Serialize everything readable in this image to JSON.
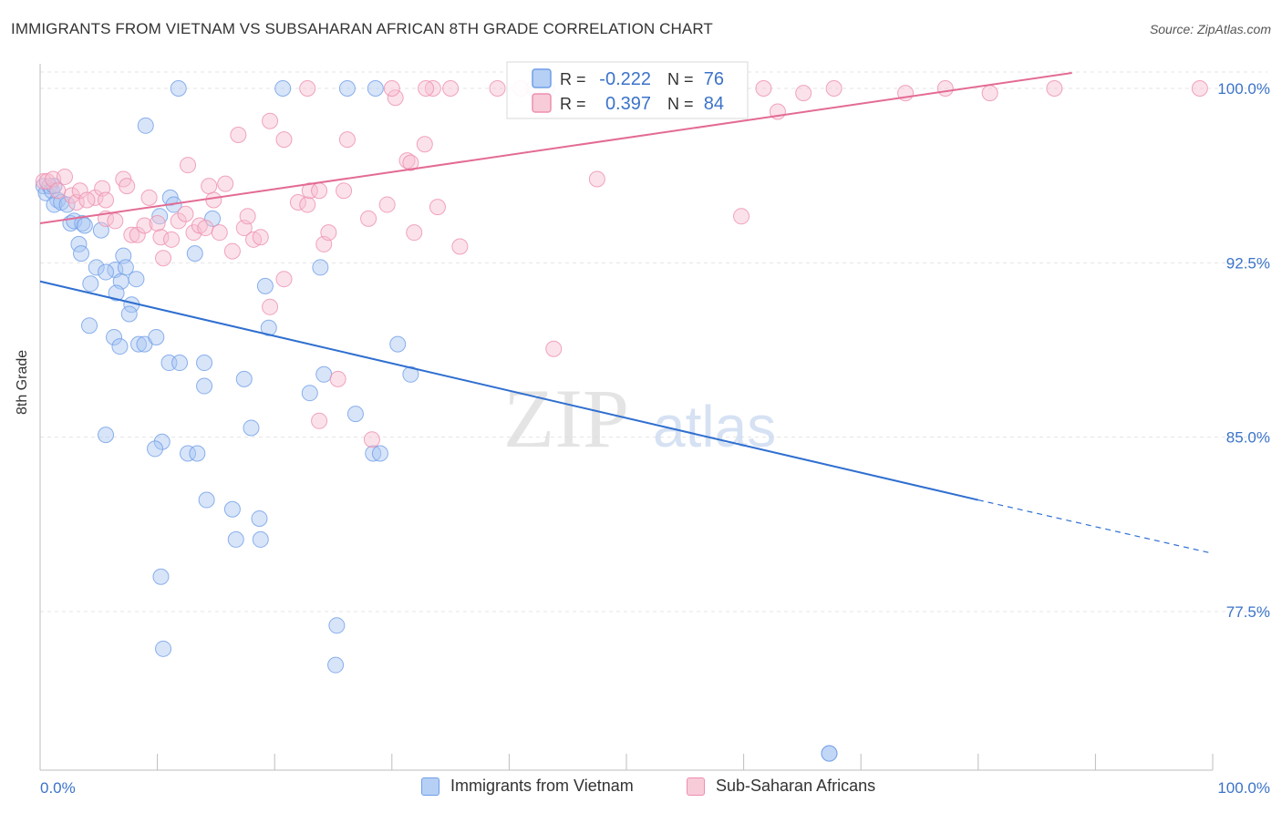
{
  "title": "IMMIGRANTS FROM VIETNAM VS SUBSAHARAN AFRICAN 8TH GRADE CORRELATION CHART",
  "source": "Source: ZipAtlas.com",
  "watermark": {
    "zip": "ZIP",
    "atlas": "atlas"
  },
  "colors": {
    "blue": "#6f9ee8",
    "blue_fill": "#a9c6f2",
    "blue_line": "#2f6fd0",
    "pink": "#ee8fae",
    "pink_fill": "#f6bfd1",
    "pink_line": "#e36b94",
    "axis_text": "#3b73c9"
  },
  "chart_data": {
    "type": "scatter",
    "xlabel": "",
    "ylabel": "8th Grade",
    "xlim": [
      0,
      100
    ],
    "ylim": [
      71.0,
      101.5
    ],
    "x_tick_labels": [
      "0.0%",
      "100.0%"
    ],
    "y_ticks": [
      77.5,
      85.0,
      92.5,
      100.0
    ],
    "y_tick_labels": [
      "77.5%",
      "85.0%",
      "92.5%",
      "100.0%"
    ],
    "grid": true,
    "legend_position": "top-center",
    "series": [
      {
        "name": "Immigrants from Vietnam",
        "legend_r_label": "R =",
        "r_value": "-0.222",
        "legend_n_label": "N =",
        "n_value": "76",
        "trend": {
          "x_start": 0,
          "y_start": 91.7,
          "x_solid_end": 80,
          "y_solid_end": 82.3,
          "x_dash_end": 100,
          "y_dash_end": 80.0
        },
        "points": [
          [
            0.3,
            95.8
          ],
          [
            0.5,
            95.5
          ],
          [
            0.8,
            95.8
          ],
          [
            1.0,
            95.6
          ],
          [
            1.2,
            95.8
          ],
          [
            1.5,
            95.2
          ],
          [
            1.2,
            95.0
          ],
          [
            1.8,
            95.1
          ],
          [
            2.3,
            95.0
          ],
          [
            2.6,
            94.2
          ],
          [
            2.9,
            94.3
          ],
          [
            3.6,
            94.2
          ],
          [
            3.8,
            94.1
          ],
          [
            5.2,
            93.9
          ],
          [
            3.3,
            93.3
          ],
          [
            3.5,
            92.9
          ],
          [
            7.1,
            92.8
          ],
          [
            4.8,
            92.3
          ],
          [
            6.4,
            92.2
          ],
          [
            5.6,
            92.1
          ],
          [
            7.3,
            92.3
          ],
          [
            6.9,
            91.7
          ],
          [
            8.2,
            91.8
          ],
          [
            4.3,
            91.6
          ],
          [
            6.5,
            91.2
          ],
          [
            7.8,
            90.7
          ],
          [
            7.6,
            90.3
          ],
          [
            10.2,
            94.5
          ],
          [
            11.1,
            95.3
          ],
          [
            11.4,
            95.0
          ],
          [
            14.7,
            94.4
          ],
          [
            13.2,
            92.9
          ],
          [
            4.2,
            89.8
          ],
          [
            6.3,
            89.3
          ],
          [
            8.4,
            89.0
          ],
          [
            6.8,
            88.9
          ],
          [
            8.9,
            89.0
          ],
          [
            9.9,
            89.3
          ],
          [
            11.0,
            88.2
          ],
          [
            11.9,
            88.2
          ],
          [
            14.0,
            88.2
          ],
          [
            14.0,
            87.2
          ],
          [
            17.4,
            87.5
          ],
          [
            19.2,
            91.5
          ],
          [
            19.5,
            89.7
          ],
          [
            23.9,
            92.3
          ],
          [
            30.5,
            89.0
          ],
          [
            31.6,
            87.7
          ],
          [
            24.2,
            87.7
          ],
          [
            23.0,
            86.9
          ],
          [
            26.9,
            86.0
          ],
          [
            18.0,
            85.4
          ],
          [
            5.6,
            85.1
          ],
          [
            10.4,
            84.8
          ],
          [
            9.8,
            84.5
          ],
          [
            12.6,
            84.3
          ],
          [
            13.4,
            84.3
          ],
          [
            28.4,
            84.3
          ],
          [
            29.0,
            84.3
          ],
          [
            14.2,
            82.3
          ],
          [
            16.4,
            81.9
          ],
          [
            18.7,
            81.5
          ],
          [
            16.7,
            80.6
          ],
          [
            18.8,
            80.6
          ],
          [
            10.3,
            79.0
          ],
          [
            10.5,
            75.9
          ],
          [
            25.3,
            76.9
          ],
          [
            25.2,
            75.2
          ],
          [
            9.0,
            98.4
          ],
          [
            11.8,
            100.0
          ],
          [
            20.7,
            100.0
          ],
          [
            26.2,
            100.0
          ],
          [
            28.6,
            100.0
          ],
          [
            43.2,
            100.0
          ],
          [
            67.3,
            71.4
          ],
          [
            67.3,
            71.4
          ]
        ]
      },
      {
        "name": "Sub-Saharan Africans",
        "legend_r_label": "R =",
        "r_value": "0.397",
        "legend_n_label": "N =",
        "n_value": "84",
        "trend": {
          "x_start": 0,
          "y_start": 94.2,
          "x_end": 88,
          "y_end": 100.0
        },
        "points": [
          [
            0.3,
            96.0
          ],
          [
            0.6,
            96.0
          ],
          [
            1.1,
            96.1
          ],
          [
            1.5,
            95.6
          ],
          [
            2.1,
            96.2
          ],
          [
            2.7,
            95.4
          ],
          [
            3.1,
            95.1
          ],
          [
            3.4,
            95.6
          ],
          [
            4.7,
            95.3
          ],
          [
            4.0,
            95.2
          ],
          [
            5.3,
            95.7
          ],
          [
            5.6,
            94.4
          ],
          [
            6.4,
            94.3
          ],
          [
            5.6,
            95.2
          ],
          [
            7.1,
            96.1
          ],
          [
            7.4,
            95.8
          ],
          [
            7.8,
            93.7
          ],
          [
            8.3,
            93.7
          ],
          [
            8.9,
            94.1
          ],
          [
            9.3,
            95.3
          ],
          [
            10.0,
            94.2
          ],
          [
            10.3,
            93.6
          ],
          [
            10.5,
            92.7
          ],
          [
            11.2,
            93.5
          ],
          [
            11.8,
            94.3
          ],
          [
            12.4,
            94.6
          ],
          [
            12.6,
            96.7
          ],
          [
            13.1,
            93.8
          ],
          [
            13.6,
            94.1
          ],
          [
            14.1,
            94.0
          ],
          [
            14.4,
            95.8
          ],
          [
            14.8,
            95.2
          ],
          [
            15.3,
            93.8
          ],
          [
            15.8,
            95.9
          ],
          [
            16.4,
            93.0
          ],
          [
            16.9,
            98.0
          ],
          [
            17.4,
            94.0
          ],
          [
            17.7,
            94.5
          ],
          [
            18.2,
            93.5
          ],
          [
            18.8,
            93.6
          ],
          [
            19.6,
            90.6
          ],
          [
            20.8,
            91.8
          ],
          [
            19.6,
            98.6
          ],
          [
            20.8,
            97.8
          ],
          [
            22.0,
            95.1
          ],
          [
            22.8,
            95.0
          ],
          [
            23.0,
            95.6
          ],
          [
            23.8,
            95.6
          ],
          [
            24.2,
            93.3
          ],
          [
            24.6,
            93.8
          ],
          [
            25.4,
            87.5
          ],
          [
            25.9,
            95.6
          ],
          [
            26.2,
            97.8
          ],
          [
            23.8,
            85.7
          ],
          [
            28.0,
            94.4
          ],
          [
            28.3,
            84.9
          ],
          [
            29.6,
            95.0
          ],
          [
            30.3,
            99.6
          ],
          [
            31.3,
            96.9
          ],
          [
            31.6,
            96.8
          ],
          [
            31.9,
            93.8
          ],
          [
            32.8,
            97.6
          ],
          [
            33.9,
            94.9
          ],
          [
            33.5,
            100.0
          ],
          [
            35.8,
            93.2
          ],
          [
            41.0,
            100.0
          ],
          [
            42.1,
            100.0
          ],
          [
            43.8,
            88.8
          ],
          [
            47.5,
            96.1
          ],
          [
            59.8,
            94.5
          ],
          [
            61.7,
            100.0
          ],
          [
            62.9,
            99.0
          ],
          [
            65.1,
            99.8
          ],
          [
            67.7,
            100.0
          ],
          [
            73.8,
            99.8
          ],
          [
            77.2,
            100.0
          ],
          [
            81.0,
            99.8
          ],
          [
            86.5,
            100.0
          ],
          [
            98.9,
            100.0
          ],
          [
            22.8,
            100.0
          ],
          [
            30.0,
            100.0
          ],
          [
            32.9,
            100.0
          ],
          [
            35.0,
            100.0
          ],
          [
            39.0,
            100.0
          ]
        ]
      }
    ]
  }
}
